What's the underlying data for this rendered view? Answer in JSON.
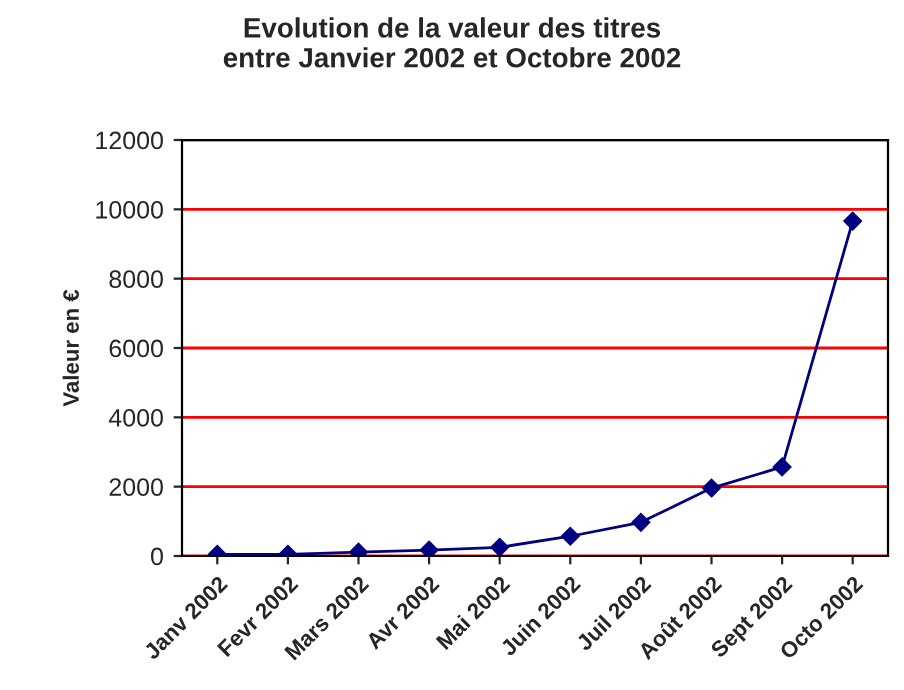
{
  "chart_data": {
    "type": "line",
    "title": "Evolution de la valeur des titres\nentre Janvier 2002 et Octobre 2002",
    "ylabel": "Valeur en €",
    "categories": [
      "Janv 2002",
      "Fevr 2002",
      "Mars 2002",
      "Avr 2002",
      "Mai 2002",
      "Juin 2002",
      "Juil 2002",
      "Août 2002",
      "Sept 2002",
      "Octo 2002"
    ],
    "series": [
      {
        "color": "#000080",
        "values": [
          50,
          50,
          110,
          170,
          250,
          570,
          970,
          1960,
          2570,
          9660
        ]
      }
    ],
    "ylim": [
      0,
      12000
    ],
    "yticks": [
      0,
      2000,
      4000,
      6000,
      8000,
      10000,
      12000
    ],
    "grid": "y",
    "marker": "diamond",
    "line_style": "solid",
    "legend": false
  }
}
